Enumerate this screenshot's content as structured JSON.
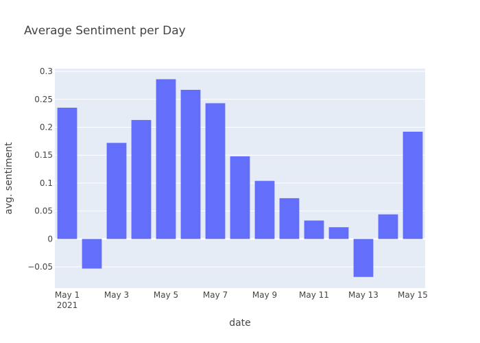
{
  "chart_data": {
    "type": "bar",
    "title": "Average Sentiment per Day",
    "xlabel": "date",
    "ylabel": "avg. sentiment",
    "categories": [
      "2021-05-01",
      "2021-05-02",
      "2021-05-03",
      "2021-05-04",
      "2021-05-05",
      "2021-05-06",
      "2021-05-07",
      "2021-05-08",
      "2021-05-09",
      "2021-05-10",
      "2021-05-11",
      "2021-05-12",
      "2021-05-13",
      "2021-05-14",
      "2021-05-15"
    ],
    "values": [
      0.235,
      -0.053,
      0.172,
      0.213,
      0.286,
      0.267,
      0.243,
      0.148,
      0.104,
      0.073,
      0.033,
      0.021,
      -0.068,
      0.044,
      0.192
    ],
    "ylim": [
      -0.088,
      0.305
    ],
    "y_ticks": [
      {
        "value": -0.05,
        "label": "−0.05"
      },
      {
        "value": 0,
        "label": "0"
      },
      {
        "value": 0.05,
        "label": "0.05"
      },
      {
        "value": 0.1,
        "label": "0.1"
      },
      {
        "value": 0.15,
        "label": "0.15"
      },
      {
        "value": 0.2,
        "label": "0.2"
      },
      {
        "value": 0.25,
        "label": "0.25"
      },
      {
        "value": 0.3,
        "label": "0.3"
      }
    ],
    "x_ticks": [
      {
        "index": 0,
        "label": "May 1",
        "sublabel": "2021"
      },
      {
        "index": 2,
        "label": "May 3"
      },
      {
        "index": 4,
        "label": "May 5"
      },
      {
        "index": 6,
        "label": "May 7"
      },
      {
        "index": 8,
        "label": "May 9"
      },
      {
        "index": 10,
        "label": "May 11"
      },
      {
        "index": 12,
        "label": "May 13"
      },
      {
        "index": 14,
        "label": "May 15"
      }
    ],
    "grid": true,
    "colors": {
      "bar": "#636efa",
      "plot_bg": "#e5ecf6",
      "grid": "#ffffff"
    }
  }
}
